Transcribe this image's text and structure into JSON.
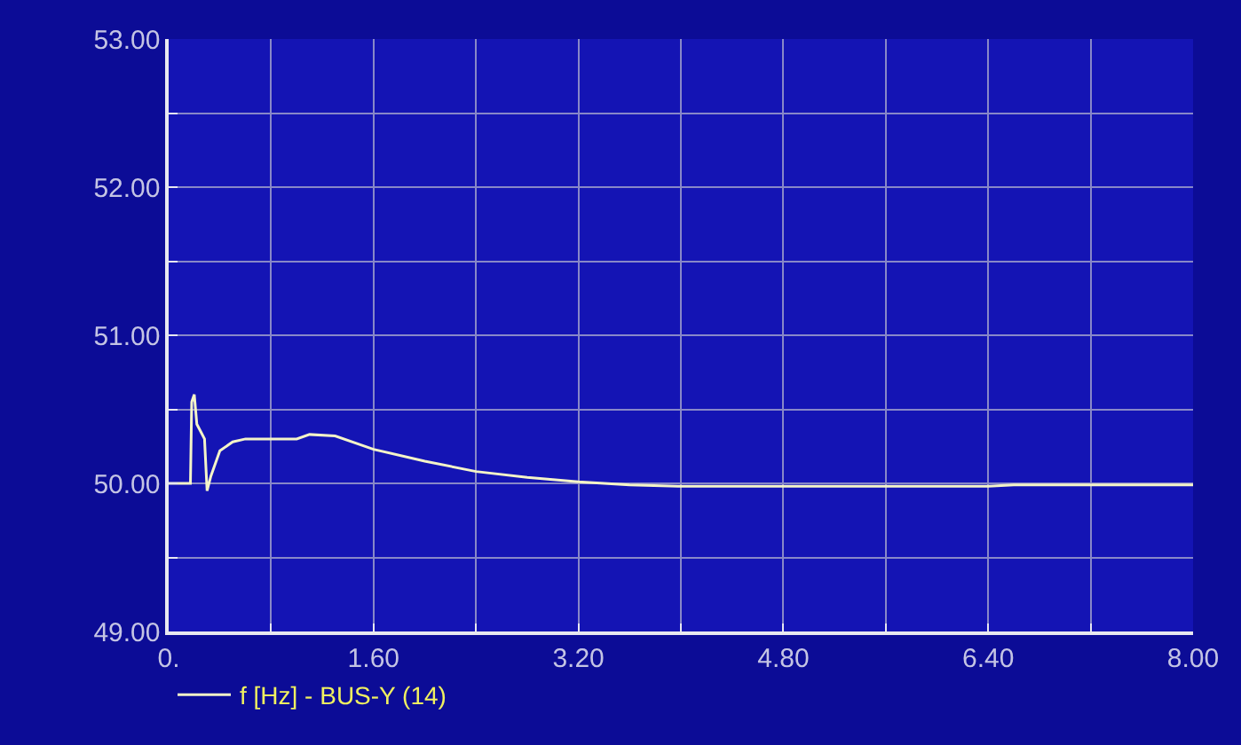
{
  "chart_data": {
    "type": "line",
    "x": [
      0,
      0.17,
      0.18,
      0.2,
      0.22,
      0.25,
      0.28,
      0.3,
      0.33,
      0.4,
      0.5,
      0.6,
      0.8,
      1.0,
      1.1,
      1.3,
      1.6,
      2.0,
      2.4,
      2.8,
      3.2,
      3.6,
      4.0,
      4.8,
      5.6,
      6.4,
      6.6,
      7.2,
      8.0
    ],
    "series": [
      {
        "name": "f [Hz] - BUS-Y (14)",
        "color": "#f4f4c8",
        "values": [
          50.0,
          50.0,
          50.55,
          50.6,
          50.4,
          50.35,
          50.3,
          49.95,
          50.05,
          50.22,
          50.28,
          50.3,
          50.3,
          50.3,
          50.33,
          50.32,
          50.23,
          50.15,
          50.08,
          50.04,
          50.01,
          49.99,
          49.98,
          49.98,
          49.98,
          49.98,
          49.99,
          49.99,
          49.99
        ]
      }
    ],
    "xlim": [
      0,
      8.0
    ],
    "xticks": [
      {
        "value": 0,
        "label": "0."
      },
      {
        "value": 0.8,
        "label": null
      },
      {
        "value": 1.6,
        "label": "1.60"
      },
      {
        "value": 2.4,
        "label": null
      },
      {
        "value": 3.2,
        "label": "3.20"
      },
      {
        "value": 4.0,
        "label": null
      },
      {
        "value": 4.8,
        "label": "4.80"
      },
      {
        "value": 5.6,
        "label": null
      },
      {
        "value": 6.4,
        "label": "6.40"
      },
      {
        "value": 7.2,
        "label": null
      },
      {
        "value": 8.0,
        "label": "8.00"
      }
    ],
    "ylim": [
      49.0,
      53.0
    ],
    "yticks": [
      {
        "value": 49,
        "label": "49.00"
      },
      {
        "value": 49.5,
        "label": null
      },
      {
        "value": 50,
        "label": "50.00"
      },
      {
        "value": 50.5,
        "label": null
      },
      {
        "value": 51,
        "label": "51.00"
      },
      {
        "value": 51.5,
        "label": null
      },
      {
        "value": 52,
        "label": "52.00"
      },
      {
        "value": 52.5,
        "label": null
      },
      {
        "value": 53,
        "label": "53.00"
      }
    ],
    "grid": true,
    "legend": "bottom left",
    "marker": "none",
    "line_style": "solid"
  }
}
